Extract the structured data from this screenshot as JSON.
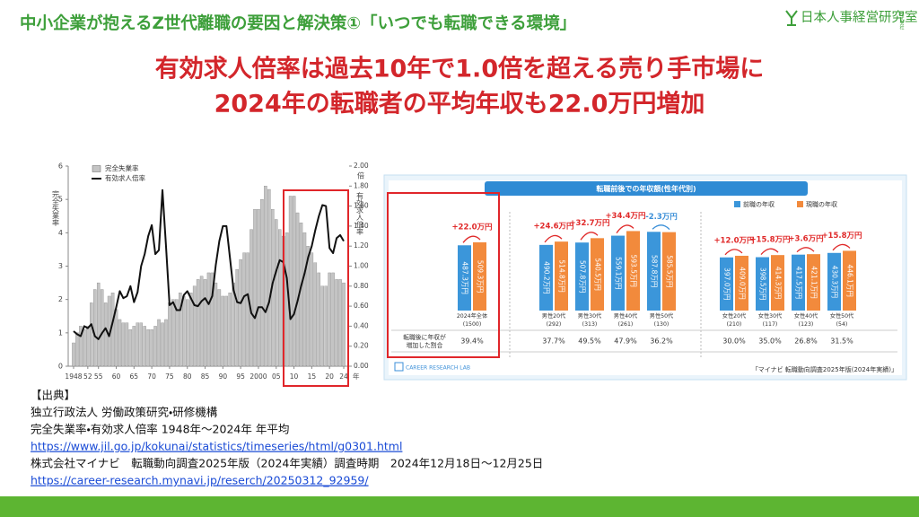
{
  "header": {
    "title": "中小企業が抱えるZ世代離職の要因と解決策①「いつでも転職できる環境」",
    "company": "日本人事経営研究室",
    "company_type": "株式会社"
  },
  "headline": [
    "有効求人倍率は過去10年で1.0倍を超える売り手市場に",
    "2024年の転職者の平均年収も22.0万円増加"
  ],
  "chart_data": [
    {
      "type": "combo",
      "legend": "upper left",
      "x": [
        1948,
        1949,
        1950,
        1951,
        1952,
        1953,
        1954,
        1955,
        1956,
        1957,
        1958,
        1959,
        1960,
        1961,
        1962,
        1963,
        1964,
        1965,
        1966,
        1967,
        1968,
        1969,
        1970,
        1971,
        1972,
        1973,
        1974,
        1975,
        1976,
        1977,
        1978,
        1979,
        1980,
        1981,
        1982,
        1983,
        1984,
        1985,
        1986,
        1987,
        1988,
        1989,
        1990,
        1991,
        1992,
        1993,
        1994,
        1995,
        1996,
        1997,
        1998,
        1999,
        2000,
        2001,
        2002,
        2003,
        2004,
        2005,
        2006,
        2007,
        2008,
        2009,
        2010,
        2011,
        2012,
        2013,
        2014,
        2015,
        2016,
        2017,
        2018,
        2019,
        2020,
        2021,
        2022,
        2023,
        2024
      ],
      "xlim": [
        1947.5,
        2024.5
      ],
      "xticks": [
        {
          "value": 1948,
          "label": "1948"
        },
        {
          "value": 1952,
          "label": "52"
        },
        {
          "value": 1955,
          "label": "55"
        },
        {
          "value": 1960,
          "label": "60"
        },
        {
          "value": 1965,
          "label": "65"
        },
        {
          "value": 1970,
          "label": "70"
        },
        {
          "value": 1975,
          "label": "75"
        },
        {
          "value": 1980,
          "label": "80"
        },
        {
          "value": 1985,
          "label": "85"
        },
        {
          "value": 1990,
          "label": "90"
        },
        {
          "value": 1995,
          "label": "95"
        },
        2000,
        {
          "value": 2005,
          "label": "05"
        },
        {
          "value": 2010,
          "label": "10"
        },
        {
          "value": 2015,
          "label": "15"
        },
        {
          "value": 2020,
          "label": "20"
        },
        {
          "value": 2024,
          "label": "24"
        }
      ],
      "x_unit": "年",
      "ylim": [
        0,
        6
      ],
      "yticks": [
        0,
        1,
        2,
        3,
        4,
        5,
        6
      ],
      "ylabel": "完全失業率",
      "y2lim": [
        0,
        2
      ],
      "y2ticks": [
        {
          "value": 0,
          "label": "0.00"
        },
        {
          "value": 0.2,
          "label": "0.20"
        },
        {
          "value": 0.4,
          "label": "0.40"
        },
        {
          "value": 0.6,
          "label": "0.60"
        },
        {
          "value": 0.8,
          "label": "0.80"
        },
        {
          "value": 1,
          "label": "1.00"
        },
        {
          "value": 1.2,
          "label": "1.20"
        },
        {
          "value": 1.4,
          "label": "1.40"
        },
        {
          "value": 1.6,
          "label": "1.60"
        },
        {
          "value": 1.8,
          "label": "1.80"
        },
        {
          "value": 2,
          "label": "2.00"
        }
      ],
      "y2label": "有効求人倍率",
      "y2_unit": "倍",
      "series": [
        {
          "name": "完全失業率",
          "type": "bar",
          "color": "#c4c4c4",
          "values": [
            0.7,
            1.0,
            1.2,
            1.1,
            1.2,
            1.9,
            2.3,
            2.5,
            2.3,
            1.9,
            2.1,
            2.2,
            1.7,
            1.4,
            1.3,
            1.3,
            1.1,
            1.2,
            1.3,
            1.3,
            1.2,
            1.1,
            1.1,
            1.2,
            1.4,
            1.3,
            1.4,
            1.9,
            2.0,
            2.0,
            2.2,
            2.1,
            2.0,
            2.2,
            2.4,
            2.6,
            2.7,
            2.6,
            2.8,
            2.8,
            2.5,
            2.3,
            2.1,
            2.1,
            2.2,
            2.5,
            2.9,
            3.2,
            3.4,
            3.4,
            4.1,
            4.7,
            4.7,
            5.0,
            5.4,
            5.3,
            4.7,
            4.4,
            4.1,
            3.9,
            4.0,
            5.1,
            5.1,
            4.6,
            4.3,
            4.0,
            3.6,
            3.4,
            3.1,
            2.8,
            2.4,
            2.4,
            2.8,
            2.8,
            2.6,
            2.6,
            2.5
          ]
        },
        {
          "name": "有効求人倍率",
          "type": "line",
          "axis": "y2",
          "color": "#111111",
          "values": [
            0.35,
            0.32,
            0.3,
            0.4,
            0.38,
            0.42,
            0.3,
            0.27,
            0.33,
            0.38,
            0.3,
            0.44,
            0.59,
            0.75,
            0.68,
            0.7,
            0.8,
            0.64,
            0.74,
            1.0,
            1.12,
            1.3,
            1.41,
            1.12,
            1.16,
            1.76,
            1.2,
            0.61,
            0.64,
            0.56,
            0.56,
            0.71,
            0.75,
            0.68,
            0.61,
            0.6,
            0.65,
            0.68,
            0.62,
            0.7,
            1.01,
            1.25,
            1.4,
            1.4,
            1.08,
            0.76,
            0.64,
            0.63,
            0.7,
            0.72,
            0.53,
            0.48,
            0.59,
            0.59,
            0.54,
            0.64,
            0.83,
            0.95,
            1.06,
            1.04,
            0.88,
            0.47,
            0.52,
            0.65,
            0.8,
            0.93,
            1.09,
            1.2,
            1.36,
            1.5,
            1.61,
            1.6,
            1.18,
            1.13,
            1.28,
            1.31,
            1.25
          ]
        }
      ]
    },
    {
      "type": "bar",
      "title": "転職前後での年収額(性年代別)",
      "legend": "upper right",
      "categories": [
        "2024年全体",
        "男性20代",
        "男性30代",
        "男性40代",
        "男性50代",
        "女性20代",
        "女性30代",
        "女性40代",
        "女性50代"
      ],
      "sample_sizes": [
        1500,
        292,
        313,
        261,
        130,
        210,
        117,
        123,
        54
      ],
      "sample_size_labels": [
        "(1500)",
        "(292)",
        "(313)",
        "(261)",
        "(130)",
        "(210)",
        "(117)",
        "(123)",
        "(54)"
      ],
      "ylim": [
        0,
        650
      ],
      "series": [
        {
          "name": "前職の年収",
          "color": "#3b96da",
          "values": [
            487.3,
            490.2,
            507.8,
            559.1,
            587.8,
            397.0,
            398.5,
            417.5,
            430.3
          ],
          "value_labels": [
            "487.3万円",
            "490.2万円",
            "507.8万円",
            "559.1万円",
            "587.8万円",
            "397.0万円",
            "398.5万円",
            "417.5万円",
            "430.3万円"
          ]
        },
        {
          "name": "現職の年収",
          "color": "#f28a3c",
          "values": [
            509.3,
            514.8,
            540.5,
            593.5,
            585.5,
            409.0,
            414.3,
            421.1,
            446.1
          ],
          "value_labels": [
            "509.3万円",
            "514.8万円",
            "540.5万円",
            "593.5万円",
            "585.5万円",
            "409.0万円",
            "414.3万円",
            "421.1万円",
            "446.1万円"
          ]
        }
      ],
      "changes": [
        22.0,
        24.6,
        32.7,
        34.4,
        -2.3,
        12.0,
        15.8,
        3.6,
        15.8
      ],
      "change_labels": [
        "+22.0万円",
        "+24.6万円",
        "+32.7万円",
        "+34.4万円",
        "-2.3万円",
        "+12.0万円",
        "+15.8万円",
        "+3.6万円",
        "+15.8万円"
      ],
      "increase_share": {
        "label": [
          "転職後に年収が",
          "増加した割合"
        ],
        "values": [
          39.4,
          37.7,
          49.5,
          47.9,
          36.2,
          30.0,
          35.0,
          26.8,
          31.5
        ],
        "value_labels": [
          "39.4%",
          "37.7%",
          "49.5%",
          "47.9%",
          "36.2%",
          "30.0%",
          "35.0%",
          "26.8%",
          "31.5%"
        ]
      },
      "logo": "CAREER RESEARCH LAB",
      "source": "「マイナビ 転職動向調査2025年版(2024年実績)」"
    }
  ],
  "sources": [
    "【出典】",
    "独立行政法人 労働政策研究・研修機構",
    "完全失業率・有効求人倍率 1948年～2024年 年平均",
    "https://www.jil.go.jp/kokunai/statistics/timeseries/html/g0301.html",
    "株式会社マイナビ　転職動向調査2025年版（2024年実績）調査時期　2024年12月18日～12月25日",
    "https://career-research.mynavi.jp/reserch/20250312_92959/"
  ]
}
